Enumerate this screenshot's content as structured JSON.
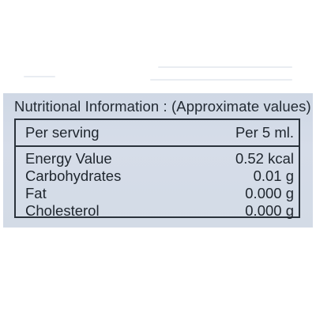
{
  "label": {
    "heading": "Nutritional Information : (Approximate values)",
    "serving_header": {
      "left": "Per serving",
      "right": "Per 5 ml."
    },
    "rows": [
      {
        "name": "Energy Value",
        "value": "0.52 kcal"
      },
      {
        "name": "Carbohydrates",
        "value": "0.01 g"
      },
      {
        "name": "Fat",
        "value": "0.000 g"
      },
      {
        "name": "Cholesterol",
        "value": "0.000 g"
      }
    ]
  },
  "colors": {
    "panel": "#d3dbe6",
    "ink": "#232b34",
    "background": "#ffffff"
  }
}
